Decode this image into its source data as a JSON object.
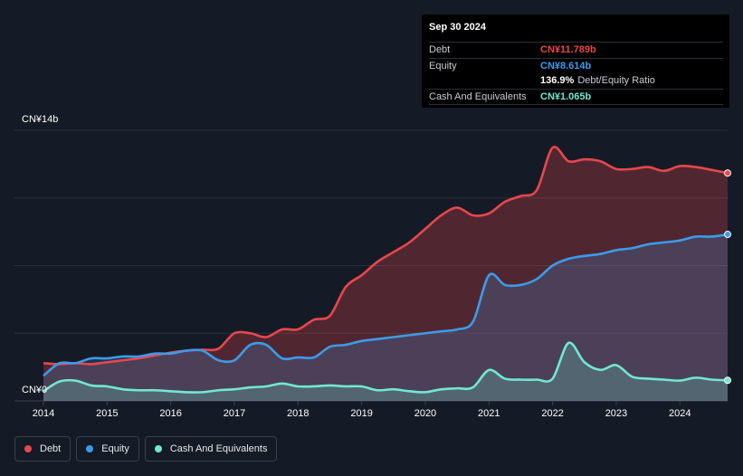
{
  "tooltip": {
    "date": "Sep 30 2024",
    "rows": [
      {
        "label": "Debt",
        "value": "CN¥11.789b",
        "color": "#e8474c"
      },
      {
        "label": "Equity",
        "value": "CN¥8.614b",
        "color": "#3c9bea"
      },
      {
        "label": "",
        "value": "136.9%",
        "suffix": "Debt/Equity Ratio",
        "color": "#ffffff"
      },
      {
        "label": "Cash And Equivalents",
        "value": "CN¥1.065b",
        "color": "#71e8cf"
      }
    ]
  },
  "legend": [
    {
      "label": "Debt",
      "color": "#e8474c"
    },
    {
      "label": "Equity",
      "color": "#3c9bea"
    },
    {
      "label": "Cash And Equivalents",
      "color": "#71e8cf"
    }
  ],
  "chart_data": {
    "type": "area",
    "y_top_label": "CN¥14b",
    "y_bottom_label": "CN¥0",
    "ylim": [
      0,
      14
    ],
    "xlim": [
      2014.0,
      2024.75
    ],
    "x_ticks": [
      "2014",
      "2015",
      "2016",
      "2017",
      "2018",
      "2019",
      "2020",
      "2021",
      "2022",
      "2023",
      "2024"
    ],
    "grid": true,
    "series": [
      {
        "name": "Debt",
        "color": "#e8474c",
        "x": [
          2014.0,
          2014.25,
          2014.5,
          2014.75,
          2015.0,
          2015.25,
          2015.5,
          2015.75,
          2016.0,
          2016.25,
          2016.5,
          2016.75,
          2017.0,
          2017.25,
          2017.5,
          2017.75,
          2018.0,
          2018.25,
          2018.5,
          2018.75,
          2019.0,
          2019.25,
          2019.5,
          2019.75,
          2020.0,
          2020.25,
          2020.5,
          2020.75,
          2021.0,
          2021.25,
          2021.5,
          2021.75,
          2022.0,
          2022.25,
          2022.5,
          2022.75,
          2023.0,
          2023.25,
          2023.5,
          2023.75,
          2024.0,
          2024.25,
          2024.5,
          2024.75
        ],
        "values": [
          1.95,
          1.9,
          1.95,
          1.9,
          2.0,
          2.1,
          2.2,
          2.35,
          2.5,
          2.6,
          2.65,
          2.7,
          3.5,
          3.5,
          3.3,
          3.7,
          3.7,
          4.2,
          4.4,
          5.9,
          6.5,
          7.2,
          7.7,
          8.2,
          8.9,
          9.6,
          10.0,
          9.6,
          9.7,
          10.3,
          10.6,
          10.9,
          13.1,
          12.4,
          12.5,
          12.4,
          12.0,
          12.0,
          12.1,
          11.9,
          12.15,
          12.1,
          11.95,
          11.789
        ]
      },
      {
        "name": "Equity",
        "color": "#3c9bea",
        "x": [
          2014.0,
          2014.25,
          2014.5,
          2014.75,
          2015.0,
          2015.25,
          2015.5,
          2015.75,
          2016.0,
          2016.25,
          2016.5,
          2016.75,
          2017.0,
          2017.25,
          2017.5,
          2017.75,
          2018.0,
          2018.25,
          2018.5,
          2018.75,
          2019.0,
          2019.25,
          2019.5,
          2019.75,
          2020.0,
          2020.25,
          2020.5,
          2020.75,
          2021.0,
          2021.25,
          2021.5,
          2021.75,
          2022.0,
          2022.25,
          2022.5,
          2022.75,
          2023.0,
          2023.25,
          2023.5,
          2023.75,
          2024.0,
          2024.25,
          2024.5,
          2024.75
        ],
        "values": [
          1.3,
          1.95,
          1.95,
          2.2,
          2.2,
          2.3,
          2.3,
          2.45,
          2.45,
          2.6,
          2.6,
          2.1,
          2.1,
          2.9,
          2.9,
          2.2,
          2.25,
          2.25,
          2.8,
          2.9,
          3.1,
          3.2,
          3.3,
          3.4,
          3.5,
          3.6,
          3.7,
          4.1,
          6.5,
          6.0,
          6.0,
          6.3,
          7.0,
          7.35,
          7.5,
          7.6,
          7.8,
          7.9,
          8.1,
          8.2,
          8.3,
          8.5,
          8.5,
          8.614
        ]
      },
      {
        "name": "Cash And Equivalents",
        "color": "#71e8cf",
        "x": [
          2014.0,
          2014.25,
          2014.5,
          2014.75,
          2015.0,
          2015.25,
          2015.5,
          2015.75,
          2016.0,
          2016.25,
          2016.5,
          2016.75,
          2017.0,
          2017.25,
          2017.5,
          2017.75,
          2018.0,
          2018.25,
          2018.5,
          2018.75,
          2019.0,
          2019.25,
          2019.5,
          2019.75,
          2020.0,
          2020.25,
          2020.5,
          2020.75,
          2021.0,
          2021.25,
          2021.5,
          2021.75,
          2022.0,
          2022.25,
          2022.5,
          2022.75,
          2023.0,
          2023.25,
          2023.5,
          2023.75,
          2024.0,
          2024.25,
          2024.5,
          2024.75
        ],
        "values": [
          0.5,
          1.0,
          1.05,
          0.8,
          0.75,
          0.6,
          0.55,
          0.55,
          0.5,
          0.45,
          0.45,
          0.55,
          0.6,
          0.7,
          0.75,
          0.9,
          0.75,
          0.75,
          0.8,
          0.75,
          0.75,
          0.55,
          0.6,
          0.5,
          0.45,
          0.6,
          0.65,
          0.7,
          1.6,
          1.15,
          1.1,
          1.1,
          1.15,
          3.0,
          2.0,
          1.6,
          1.85,
          1.25,
          1.15,
          1.1,
          1.05,
          1.2,
          1.1,
          1.065
        ]
      }
    ]
  }
}
